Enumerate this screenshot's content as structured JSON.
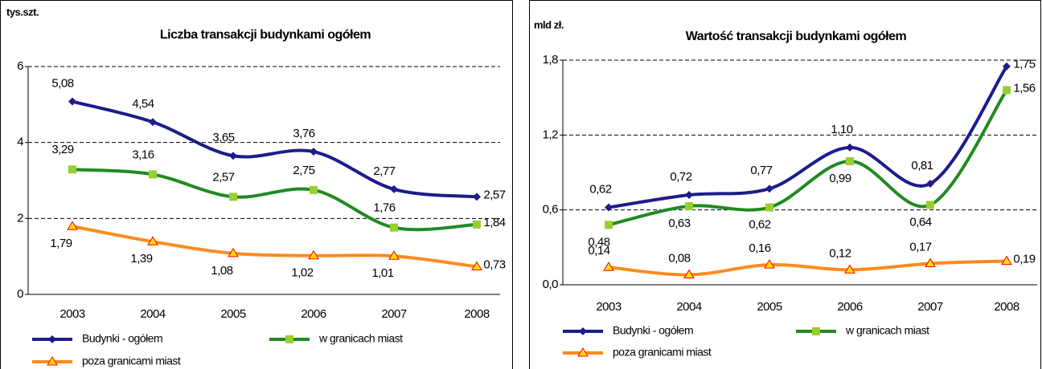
{
  "chart_data": [
    {
      "type": "line",
      "title": "Liczba transakcji budynkami  ogółem",
      "y_label": "tys.szt.",
      "categories": [
        "2003",
        "2004",
        "2005",
        "2006",
        "2007",
        "2008"
      ],
      "ylim": [
        0,
        6
      ],
      "yticks": [
        0,
        2,
        4,
        6
      ],
      "grid": true,
      "series": [
        {
          "name": "Budynki  - ogółem",
          "color": "#1c1c8c",
          "values": [
            5.08,
            4.54,
            3.65,
            3.76,
            2.77,
            2.57
          ],
          "value_labels": [
            "5,08",
            "4,54",
            "3,65",
            "3,76",
            "2,77",
            "2,57"
          ]
        },
        {
          "name": "w granicach miast",
          "color": "#218a21",
          "values": [
            3.29,
            3.16,
            2.57,
            2.75,
            1.76,
            1.84
          ],
          "value_labels": [
            "3,29",
            "3,16",
            "2,57",
            "2,75",
            "1,76",
            "1,84"
          ]
        },
        {
          "name": "poza granicami miast",
          "color": "#ff8a1e",
          "values": [
            1.79,
            1.39,
            1.08,
            1.02,
            1.01,
            0.73
          ],
          "value_labels": [
            "1,79",
            "1,39",
            "1,08",
            "1,02",
            "1,01",
            "0,73"
          ]
        }
      ]
    },
    {
      "type": "line",
      "title": "Wartość transakcji budynkami  ogółem",
      "y_label": "mld zł.",
      "categories": [
        "2003",
        "2004",
        "2005",
        "2006",
        "2007",
        "2008"
      ],
      "ylim": [
        0,
        1.8
      ],
      "yticks": [
        {
          "value": 0,
          "label": "0,0"
        },
        {
          "value": 0.6,
          "label": "0,6"
        },
        {
          "value": 1.2,
          "label": "1,2"
        },
        {
          "value": 1.8,
          "label": "1,8"
        }
      ],
      "grid": true,
      "series": [
        {
          "name": "Budynki  - ogółem",
          "color": "#1c1c8c",
          "values": [
            0.62,
            0.72,
            0.77,
            1.1,
            0.81,
            1.75
          ],
          "value_labels": [
            "0,62",
            "0,72",
            "0,77",
            "1,10",
            "0,81",
            "1,75"
          ]
        },
        {
          "name": "w granicach miast",
          "color": "#218a21",
          "values": [
            0.48,
            0.63,
            0.62,
            0.99,
            0.64,
            1.56
          ],
          "value_labels": [
            "0,48",
            "0,63",
            "0,62",
            "0,99",
            "0,64",
            "1,56"
          ]
        },
        {
          "name": "poza granicami miast",
          "color": "#ff8a1e",
          "values": [
            0.14,
            0.08,
            0.16,
            0.12,
            0.17,
            0.19
          ],
          "value_labels": [
            "0,14",
            "0,08",
            "0,16",
            "0,12",
            "0,17",
            "0,19"
          ]
        }
      ]
    }
  ]
}
